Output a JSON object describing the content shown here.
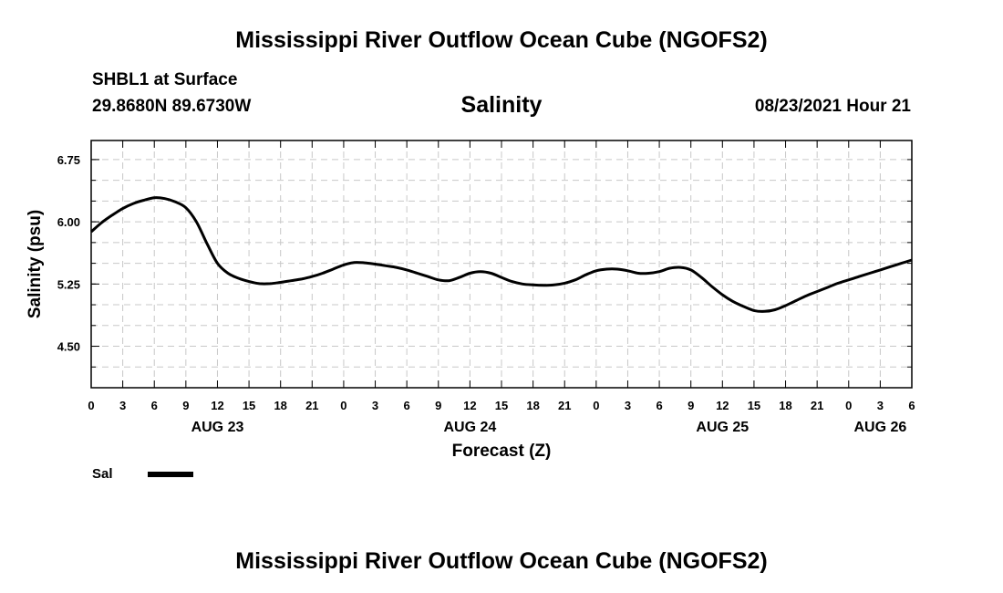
{
  "page": {
    "title_top": "Mississippi River Outflow Ocean Cube (NGOFS2)",
    "title_bottom": "Mississippi River Outflow Ocean Cube (NGOFS2)",
    "station": "SHBL1 at Surface",
    "coords": "29.8680N  89.6730W",
    "variable": "Salinity",
    "datetime": "08/23/2021 Hour 21"
  },
  "chart_data": {
    "type": "line",
    "title": "Salinity",
    "xlabel": "Forecast (Z)",
    "ylabel": "Salinity (psu)",
    "xlim": [
      0,
      78
    ],
    "ylim": [
      4.0,
      6.98
    ],
    "yticks": [
      4.5,
      5.25,
      6.0,
      6.75
    ],
    "ytick_labels": [
      "4.50",
      "5.25",
      "6.00",
      "6.75"
    ],
    "yminor_step": 0.25,
    "xtick_hours": [
      0,
      3,
      6,
      9,
      12,
      15,
      18,
      21,
      24,
      27,
      30,
      33,
      36,
      39,
      42,
      45,
      48,
      51,
      54,
      57,
      60,
      63,
      66,
      69,
      72,
      75,
      78
    ],
    "xtick_labels": [
      "0",
      "3",
      "6",
      "9",
      "12",
      "15",
      "18",
      "21",
      "0",
      "3",
      "6",
      "9",
      "12",
      "15",
      "18",
      "21",
      "0",
      "3",
      "6",
      "9",
      "12",
      "15",
      "18",
      "21",
      "0",
      "3",
      "6"
    ],
    "day_labels": [
      {
        "hour": 12,
        "label": "AUG 23"
      },
      {
        "hour": 36,
        "label": "AUG 24"
      },
      {
        "hour": 60,
        "label": "AUG 25"
      },
      {
        "hour": 75,
        "label": "AUG 26"
      }
    ],
    "grid": true,
    "legend": [
      {
        "name": "Sal",
        "color": "#000000"
      }
    ],
    "series": [
      {
        "name": "Sal",
        "color": "#000000",
        "x": [
          0,
          1,
          2,
          3,
          4,
          5,
          6,
          7,
          8,
          9,
          10,
          11,
          12,
          13,
          14,
          15,
          16,
          17,
          18,
          19,
          20,
          21,
          22,
          23,
          24,
          25,
          26,
          27,
          28,
          29,
          30,
          31,
          32,
          33,
          34,
          35,
          36,
          37,
          38,
          39,
          40,
          41,
          42,
          43,
          44,
          45,
          46,
          47,
          48,
          49,
          50,
          51,
          52,
          53,
          54,
          55,
          56,
          57,
          58,
          59,
          60,
          61,
          62,
          63,
          64,
          65,
          66,
          67,
          68,
          69,
          70,
          71,
          72,
          73,
          74,
          75,
          76,
          77,
          78
        ],
        "y": [
          5.88,
          5.99,
          6.08,
          6.16,
          6.22,
          6.26,
          6.29,
          6.28,
          6.24,
          6.17,
          6.0,
          5.74,
          5.5,
          5.38,
          5.32,
          5.28,
          5.255,
          5.255,
          5.27,
          5.29,
          5.31,
          5.34,
          5.38,
          5.43,
          5.48,
          5.51,
          5.505,
          5.49,
          5.47,
          5.45,
          5.42,
          5.38,
          5.34,
          5.3,
          5.29,
          5.33,
          5.38,
          5.4,
          5.38,
          5.33,
          5.28,
          5.25,
          5.24,
          5.235,
          5.24,
          5.26,
          5.3,
          5.36,
          5.41,
          5.43,
          5.43,
          5.41,
          5.38,
          5.38,
          5.4,
          5.44,
          5.45,
          5.42,
          5.33,
          5.22,
          5.12,
          5.04,
          4.98,
          4.93,
          4.92,
          4.94,
          4.99,
          5.05,
          5.11,
          5.16,
          5.21,
          5.26,
          5.3,
          5.34,
          5.38,
          5.42,
          5.46,
          5.5,
          5.54
        ]
      }
    ]
  }
}
